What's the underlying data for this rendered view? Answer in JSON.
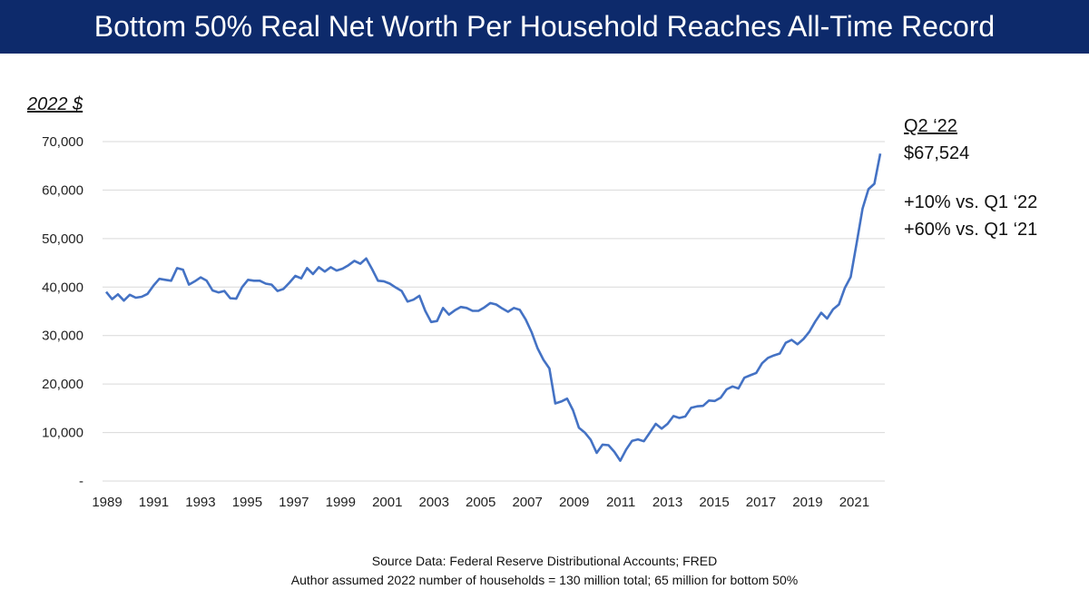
{
  "title": "Bottom 50% Real Net Worth Per Household Reaches All-Time Record",
  "annotation": {
    "period": "Q2 ‘22",
    "value": "$67,524",
    "change_q": "+10% vs. Q1 ‘22",
    "change_y": "+60% vs. Q1 ‘21"
  },
  "source": {
    "line1": "Source Data:  Federal Reserve Distributional Accounts; FRED",
    "line2": "Author assumed 2022 number of households = 130 million total; 65 million for bottom 50%"
  },
  "colors": {
    "title_bg": "#0d2a6b",
    "line": "#4472c4",
    "grid": "#d9d9d9"
  },
  "chart_data": {
    "type": "line",
    "ylabel": "2022 $",
    "ylim": [
      0,
      70000
    ],
    "yticks": [
      0,
      10000,
      20000,
      30000,
      40000,
      50000,
      60000,
      70000
    ],
    "ytick_labels": [
      "-",
      "10,000",
      "20,000",
      "30,000",
      "40,000",
      "50,000",
      "60,000",
      "70,000"
    ],
    "xticks": [
      "1989",
      "1991",
      "1993",
      "1995",
      "1997",
      "1999",
      "2001",
      "2003",
      "2005",
      "2007",
      "2009",
      "2011",
      "2013",
      "2015",
      "2017",
      "2019",
      "2021"
    ],
    "grid": true,
    "series": [
      {
        "values": [
          39000,
          37500,
          38500,
          37200,
          38400,
          37800,
          38000,
          38600,
          40300,
          41700,
          41500,
          41300,
          43900,
          43600,
          40500,
          41200,
          42000,
          41300,
          39300,
          38900,
          39200,
          37700,
          37600,
          40000,
          41500,
          41300,
          41300,
          40700,
          40500,
          39200,
          39600,
          40900,
          42300,
          41800,
          43900,
          42700,
          44100,
          43200,
          44100,
          43400,
          43800,
          44500,
          45400,
          44800,
          45900,
          43700,
          41300,
          41200,
          40700,
          39900,
          39200,
          37000,
          37400,
          38200,
          35100,
          32800,
          33000,
          35700,
          34300,
          35200,
          35900,
          35700,
          35100,
          35100,
          35800,
          36700,
          36400,
          35600,
          34900,
          35700,
          35300,
          33300,
          30700,
          27400,
          25000,
          23200,
          16000,
          16400,
          17000,
          14600,
          11000,
          10000,
          8500,
          5800,
          7500,
          7400,
          6000,
          4200,
          6500,
          8300,
          8600,
          8200,
          10000,
          11800,
          10800,
          11800,
          13400,
          13000,
          13300,
          15100,
          15400,
          15500,
          16600,
          16500,
          17200,
          18900,
          19500,
          19100,
          21300,
          21800,
          22300,
          24300,
          25400,
          25900,
          26300,
          28500,
          29100,
          28200,
          29300,
          30800,
          32900,
          34700,
          33500,
          35400,
          36400,
          39800,
          42100,
          49100,
          56200,
          60200,
          61300,
          67524
        ]
      }
    ]
  }
}
